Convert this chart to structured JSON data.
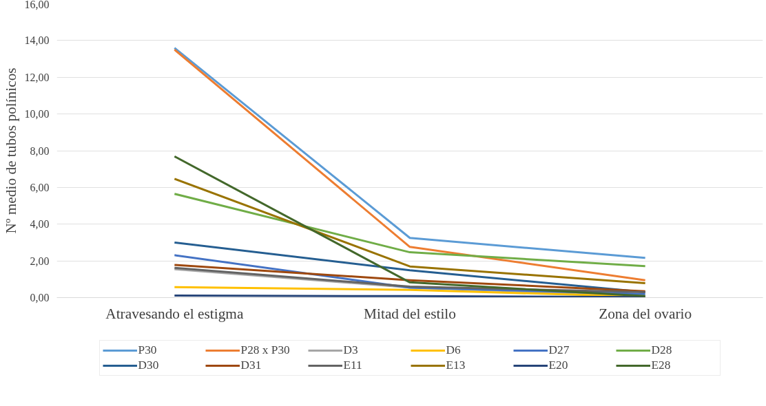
{
  "chart_data": {
    "type": "line",
    "ylabel": "Nº medio de tubos polínicos",
    "categories": [
      "Atravesando el estigma",
      "Mitad del estilo",
      "Zona del ovario"
    ],
    "ylim": [
      0,
      16
    ],
    "yticks": [
      {
        "value": 0,
        "label": "0,00"
      },
      {
        "value": 2,
        "label": "2,00"
      },
      {
        "value": 4,
        "label": "4,00"
      },
      {
        "value": 6,
        "label": "6,00"
      },
      {
        "value": 8,
        "label": "8,00"
      },
      {
        "value": 10,
        "label": "10,00"
      },
      {
        "value": 12,
        "label": "12,00"
      },
      {
        "value": 14,
        "label": "14,00"
      },
      {
        "value": 16,
        "label": "16,00"
      }
    ],
    "grid": "y",
    "legend": "bottom",
    "marker": "none",
    "line_style": "solid",
    "series": [
      {
        "name": "P30",
        "color": "#5b9bd5",
        "values": [
          13.6,
          3.25,
          2.16
        ]
      },
      {
        "name": "P28 x P30",
        "color": "#ed7d31",
        "values": [
          13.5,
          2.76,
          0.95
        ]
      },
      {
        "name": "D3",
        "color": "#a5a5a5",
        "values": [
          1.55,
          0.55,
          0.1
        ]
      },
      {
        "name": "D6",
        "color": "#ffc000",
        "values": [
          0.57,
          0.42,
          0.05
        ]
      },
      {
        "name": "D27",
        "color": "#4472c4",
        "values": [
          2.31,
          0.54,
          0.2
        ]
      },
      {
        "name": "D28",
        "color": "#70ad47",
        "values": [
          5.65,
          2.47,
          1.71
        ]
      },
      {
        "name": "D30",
        "color": "#255e91",
        "values": [
          3.0,
          1.49,
          0.3
        ]
      },
      {
        "name": "D31",
        "color": "#9e480e",
        "values": [
          1.78,
          0.95,
          0.35
        ]
      },
      {
        "name": "E11",
        "color": "#636363",
        "values": [
          1.62,
          0.6,
          0.3
        ]
      },
      {
        "name": "E13",
        "color": "#997300",
        "values": [
          6.47,
          1.7,
          0.79
        ]
      },
      {
        "name": "E20",
        "color": "#264478",
        "values": [
          0.11,
          0.08,
          0.03
        ]
      },
      {
        "name": "E28",
        "color": "#43682b",
        "values": [
          7.69,
          0.83,
          0.08
        ]
      }
    ]
  }
}
